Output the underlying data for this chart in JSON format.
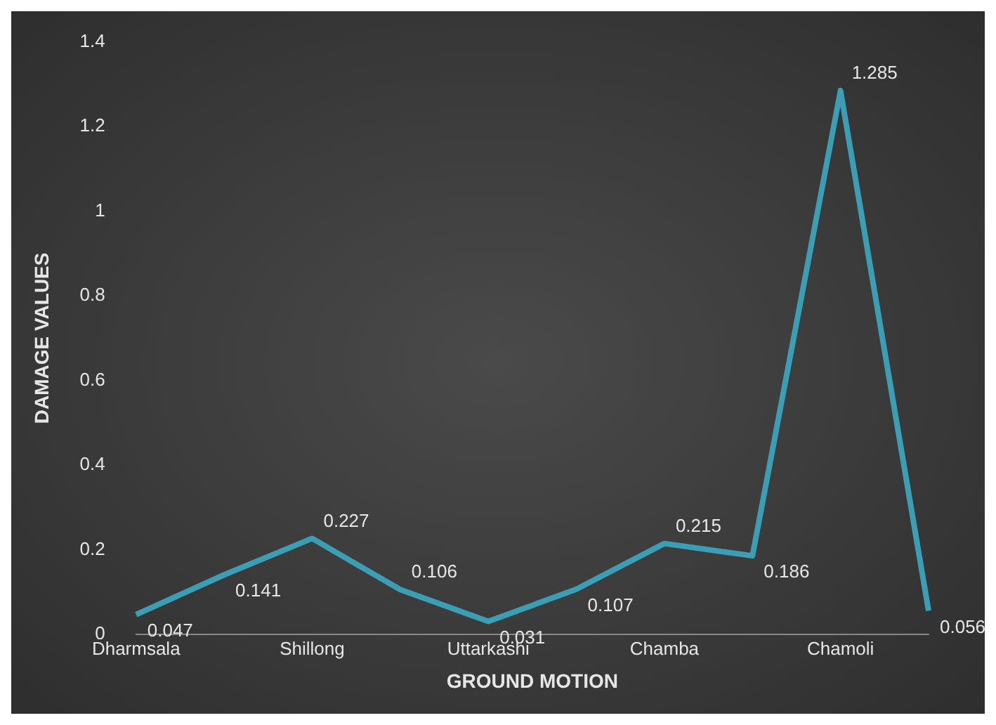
{
  "chart_data": {
    "type": "line",
    "xlabel": "GROUND MOTION",
    "ylabel": "DAMAGE VALUES",
    "categories": [
      "Dharmsala",
      null,
      "Shillong",
      null,
      "Uttarkashi",
      null,
      "Chamba",
      null,
      "Chamoli",
      null
    ],
    "series": [
      {
        "color": "#3a9fb5",
        "values": [
          0.047,
          0.141,
          0.227,
          0.106,
          0.031,
          0.107,
          0.215,
          0.186,
          1.285,
          0.056
        ]
      }
    ],
    "ylim": [
      0,
      1.4
    ],
    "yticks": [
      0,
      0.2,
      0.4,
      0.6,
      0.8,
      1,
      1.2,
      1.4
    ],
    "grid": false,
    "legend": false,
    "marker": "none",
    "line_style": "solid",
    "data_labels": true
  }
}
